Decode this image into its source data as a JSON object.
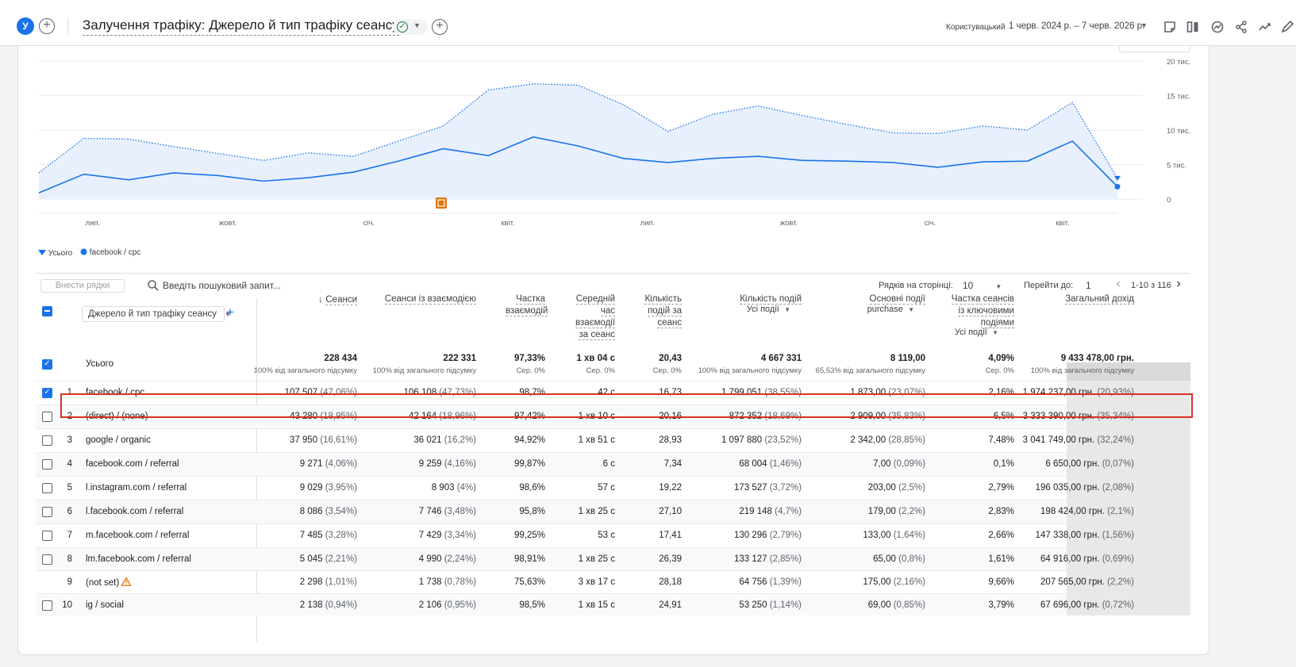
{
  "header": {
    "avatar_letter": "У",
    "title": "Залучення трафіку: Джерело й тип трафіку сеансу",
    "range_label": "Користувацький",
    "range_dates": "1 черв. 2024 р. – 7 черв. 2026 р."
  },
  "chart_data": {
    "type": "area",
    "x_ticks": [
      "лип.",
      "жовт.",
      "січ.",
      "квіт.",
      "лип.",
      "жовт.",
      "січ.",
      "квіт."
    ],
    "y_ticks": [
      "20 тис.",
      "15 тис.",
      "10 тис.",
      "5 тис.",
      "0"
    ],
    "ylim": [
      0,
      20000
    ],
    "series": [
      {
        "name": "Усього",
        "values": [
          3800,
          8800,
          8700,
          7600,
          6600,
          5600,
          6700,
          6200,
          8400,
          10600,
          15800,
          16700,
          16500,
          13700,
          9800,
          12300,
          13500,
          12100,
          10800,
          9600,
          9500,
          10600,
          10000,
          14000,
          3000
        ]
      },
      {
        "name": "facebook / cpc",
        "values": [
          900,
          3600,
          2800,
          3800,
          3400,
          2600,
          3100,
          3900,
          5500,
          7300,
          6300,
          9000,
          7700,
          5900,
          5300,
          5900,
          6200,
          5600,
          5500,
          5300,
          4600,
          5400,
          5500,
          8400,
          1800
        ]
      }
    ],
    "legend": [
      "Усього",
      "facebook / cpc"
    ],
    "annotation_icon": "annotation-icon"
  },
  "toolbar": {
    "add_rows": "Внести рядки",
    "search_placeholder": "Введіть пошуковий запит...",
    "rows_per_page_label": "Рядків на сторінці:",
    "rows_per_page": "10",
    "goto_label": "Перейти до:",
    "goto_value": "1",
    "page_range": "1-10 з 116"
  },
  "table": {
    "dimension": "Джерело й тип трафіку сеансу",
    "columns": [
      {
        "label": "Сеанси",
        "sorted": "desc"
      },
      {
        "label": "Сеанси із взаємодією"
      },
      {
        "label": "Частка взаємодій"
      },
      {
        "label": "Середній час взаємодії за сеанс"
      },
      {
        "label": "Кількість подій за сеанс"
      },
      {
        "label": "Кількість подій",
        "sub": "Усі події"
      },
      {
        "label": "Основні події",
        "sub": "purchase"
      },
      {
        "label": "Частка сеансів із ключовими подіями",
        "sub": "Усі події"
      },
      {
        "label": "Загальний дохід"
      }
    ],
    "totals": {
      "label": "Усього",
      "values": [
        "228 434",
        "222 331",
        "97,33%",
        "1 хв 04 с",
        "20,43",
        "4 667 331",
        "8 119,00",
        "4,09%",
        "9 433 478,00 грн."
      ],
      "subs": [
        "100% від загального підсумку",
        "100% від загального підсумку",
        "Сер. 0%",
        "Сер. 0%",
        "Сер. 0%",
        "100% від загального підсумку",
        "65,53% від загального підсумку",
        "Сер. 0%",
        "100% від загального підсумку"
      ]
    },
    "rows": [
      {
        "idx": "1",
        "dim": "facebook / cpc",
        "checked": true,
        "c": [
          "107 507",
          "(47,06%)",
          "106 108",
          "(47,73%)",
          "98,7%",
          "42 с",
          "16,73",
          "1 799 051",
          "(38,55%)",
          "1 873,00",
          "(23,07%)",
          "2,16%",
          "1 974 237,00 грн.",
          "(20,93%)"
        ]
      },
      {
        "idx": "2",
        "dim": "(direct) / (none)",
        "checked": false,
        "c": [
          "43 280",
          "(18,95%)",
          "42 164",
          "(18,96%)",
          "97,42%",
          "1 хв 10 с",
          "20,16",
          "872 352",
          "(18,69%)",
          "2 909,00",
          "(35,83%)",
          "6,5%",
          "3 333 390,00 грн.",
          "(35,34%)"
        ]
      },
      {
        "idx": "3",
        "dim": "google / organic",
        "checked": false,
        "c": [
          "37 950",
          "(16,61%)",
          "36 021",
          "(16,2%)",
          "94,92%",
          "1 хв 51 с",
          "28,93",
          "1 097 880",
          "(23,52%)",
          "2 342,00",
          "(28,85%)",
          "7,48%",
          "3 041 749,00 грн.",
          "(32,24%)"
        ]
      },
      {
        "idx": "4",
        "dim": "facebook.com / referral",
        "checked": false,
        "c": [
          "9 271",
          "(4,06%)",
          "9 259",
          "(4,16%)",
          "99,87%",
          "6 с",
          "7,34",
          "68 004",
          "(1,46%)",
          "7,00",
          "(0,09%)",
          "0,1%",
          "6 650,00 грн.",
          "(0,07%)"
        ]
      },
      {
        "idx": "5",
        "dim": "l.instagram.com / referral",
        "checked": false,
        "c": [
          "9 029",
          "(3,95%)",
          "8 903",
          "(4%)",
          "98,6%",
          "57 с",
          "19,22",
          "173 527",
          "(3,72%)",
          "203,00",
          "(2,5%)",
          "2,79%",
          "196 035,00 грн.",
          "(2,08%)"
        ]
      },
      {
        "idx": "6",
        "dim": "l.facebook.com / referral",
        "checked": false,
        "c": [
          "8 086",
          "(3,54%)",
          "7 746",
          "(3,48%)",
          "95,8%",
          "1 хв 25 с",
          "27,10",
          "219 148",
          "(4,7%)",
          "179,00",
          "(2,2%)",
          "2,83%",
          "198 424,00 грн.",
          "(2,1%)"
        ]
      },
      {
        "idx": "7",
        "dim": "m.facebook.com / referral",
        "checked": false,
        "c": [
          "7 485",
          "(3,28%)",
          "7 429",
          "(3,34%)",
          "99,25%",
          "53 с",
          "17,41",
          "130 296",
          "(2,79%)",
          "133,00",
          "(1,64%)",
          "2,66%",
          "147 338,00 грн.",
          "(1,56%)"
        ]
      },
      {
        "idx": "8",
        "dim": "lm.facebook.com / referral",
        "checked": false,
        "c": [
          "5 045",
          "(2,21%)",
          "4 990",
          "(2,24%)",
          "98,91%",
          "1 хв 25 с",
          "26,39",
          "133 127",
          "(2,85%)",
          "65,00",
          "(0,8%)",
          "1,61%",
          "64 916,00 грн.",
          "(0,69%)"
        ]
      },
      {
        "idx": "9",
        "dim": "(not set)",
        "checked": null,
        "warn": true,
        "c": [
          "2 298",
          "(1,01%)",
          "1 738",
          "(0,78%)",
          "75,63%",
          "3 хв 17 с",
          "28,18",
          "64 756",
          "(1,39%)",
          "175,00",
          "(2,16%)",
          "9,66%",
          "207 565,00 грн.",
          "(2,2%)"
        ]
      },
      {
        "idx": "10",
        "dim": "ig / social",
        "checked": false,
        "c": [
          "2 138",
          "(0,94%)",
          "2 106",
          "(0,95%)",
          "98,5%",
          "1 хв 15 с",
          "24,91",
          "53 250",
          "(1,14%)",
          "69,00",
          "(0,85%)",
          "3,79%",
          "67 696,00 грн.",
          "(0,72%)"
        ]
      }
    ]
  },
  "colors": {
    "accent": "#1a73e8",
    "highlight": "#d93025",
    "area_fill": "#e8f0fe"
  }
}
